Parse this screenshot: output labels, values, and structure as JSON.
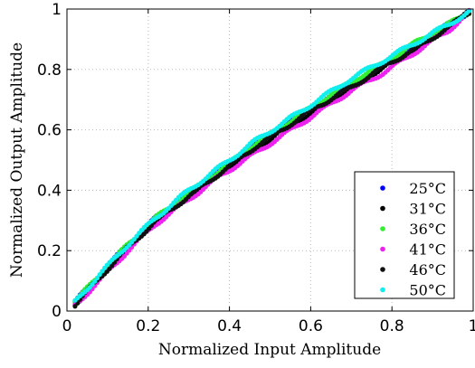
{
  "chart_data": {
    "type": "scatter",
    "xlabel": "Normalized Input Amplitude",
    "ylabel": "Normalized Output Amplitude",
    "xlim": [
      0,
      1
    ],
    "ylim": [
      0,
      1
    ],
    "xticks": [
      "0",
      "0.2",
      "0.4",
      "0.6",
      "0.8",
      "1"
    ],
    "yticks": [
      "0",
      "0.2",
      "0.4",
      "0.6",
      "0.8",
      "1"
    ],
    "grid": true,
    "legend_position": "bottom-right",
    "series": [
      {
        "name": "25°C",
        "color": "#0000ff",
        "x": [
          0.02,
          0.08,
          0.15,
          0.22,
          0.3,
          0.38,
          0.46,
          0.54,
          0.62,
          0.7,
          0.78,
          0.86,
          0.94,
          0.99
        ],
        "y": [
          0.03,
          0.12,
          0.22,
          0.31,
          0.39,
          0.47,
          0.55,
          0.62,
          0.69,
          0.75,
          0.82,
          0.88,
          0.95,
          0.99
        ]
      },
      {
        "name": "31°C",
        "color": "#000000",
        "x": [
          0.02,
          0.08,
          0.15,
          0.22,
          0.3,
          0.38,
          0.46,
          0.54,
          0.62,
          0.7,
          0.78,
          0.86,
          0.94,
          0.99
        ],
        "y": [
          0.02,
          0.11,
          0.21,
          0.3,
          0.38,
          0.46,
          0.53,
          0.61,
          0.67,
          0.74,
          0.81,
          0.87,
          0.94,
          0.99
        ]
      },
      {
        "name": "36°C",
        "color": "#33ee33",
        "x": [
          0.02,
          0.08,
          0.15,
          0.22,
          0.3,
          0.38,
          0.46,
          0.54,
          0.62,
          0.7,
          0.78,
          0.86,
          0.94,
          0.99
        ],
        "y": [
          0.03,
          0.12,
          0.22,
          0.31,
          0.39,
          0.47,
          0.55,
          0.62,
          0.69,
          0.76,
          0.82,
          0.89,
          0.95,
          0.99
        ]
      },
      {
        "name": "41°C",
        "color": "#ee22ee",
        "x": [
          0.02,
          0.08,
          0.15,
          0.22,
          0.3,
          0.38,
          0.46,
          0.54,
          0.62,
          0.7,
          0.78,
          0.86,
          0.94,
          0.99
        ],
        "y": [
          0.02,
          0.1,
          0.2,
          0.29,
          0.37,
          0.45,
          0.52,
          0.59,
          0.66,
          0.73,
          0.79,
          0.86,
          0.93,
          0.99
        ]
      },
      {
        "name": "46°C",
        "color": "#111111",
        "x": [
          0.02,
          0.08,
          0.15,
          0.22,
          0.3,
          0.38,
          0.46,
          0.54,
          0.62,
          0.7,
          0.78,
          0.86,
          0.94,
          0.99
        ],
        "y": [
          0.02,
          0.11,
          0.21,
          0.3,
          0.38,
          0.46,
          0.54,
          0.61,
          0.68,
          0.74,
          0.81,
          0.87,
          0.94,
          0.99
        ]
      },
      {
        "name": "50°C",
        "color": "#11eeee",
        "x": [
          0.02,
          0.08,
          0.15,
          0.22,
          0.3,
          0.38,
          0.46,
          0.54,
          0.62,
          0.7,
          0.78,
          0.86,
          0.94,
          0.99
        ],
        "y": [
          0.03,
          0.12,
          0.22,
          0.31,
          0.4,
          0.48,
          0.56,
          0.63,
          0.7,
          0.77,
          0.83,
          0.89,
          0.95,
          0.99
        ]
      }
    ]
  }
}
